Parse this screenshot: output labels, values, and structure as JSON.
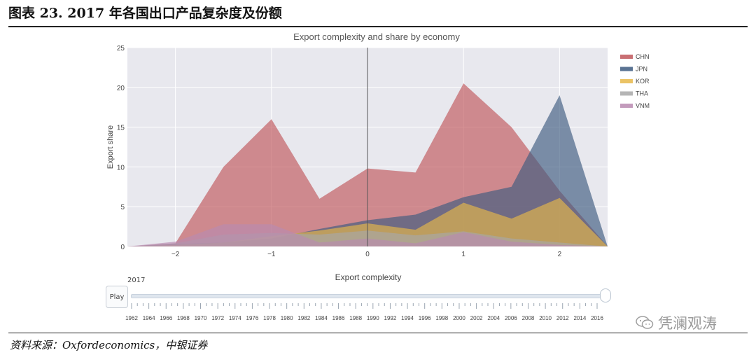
{
  "page": {
    "figure_title": "图表 23. 2017 年各国出口产品复杂度及份额",
    "source_note": "资料来源：Oxfordeconomics，中银证券",
    "watermark": "凭澜观涛"
  },
  "slider": {
    "play_label": "Play",
    "current_label": "2017",
    "value": 2017,
    "years": [
      "1962",
      "1964",
      "1966",
      "1968",
      "1970",
      "1972",
      "1974",
      "1976",
      "1978",
      "1980",
      "1982",
      "1984",
      "1986",
      "1988",
      "1990",
      "1992",
      "1994",
      "1996",
      "1998",
      "2000",
      "2002",
      "2004",
      "2006",
      "2008",
      "2010",
      "2012",
      "2014",
      "2016"
    ]
  },
  "colors": {
    "CHN": "#c0565b",
    "JPN": "#3d5a80",
    "KOR": "#e7b84a",
    "THA": "#a8a8a8",
    "VNM": "#b98ab0",
    "plot_bg": "#e8e8ee",
    "grid": "#ffffff"
  },
  "chart_data": {
    "type": "area",
    "title": "Export complexity and share by economy",
    "xlabel": "Export complexity",
    "ylabel": "Export share",
    "xlim": [
      -2.5,
      2.5
    ],
    "ylim": [
      0,
      25
    ],
    "xticks": [
      -2,
      -1,
      0,
      1,
      2
    ],
    "xtick_labels": [
      "−2",
      "−1",
      "0",
      "1",
      "2"
    ],
    "yticks": [
      0,
      5,
      10,
      15,
      20,
      25
    ],
    "vertical_line_x": 0,
    "grid": true,
    "legend_position": "right",
    "x": [
      -2.5,
      -2.0,
      -1.5,
      -1.0,
      -0.5,
      0.0,
      0.5,
      1.0,
      1.5,
      2.0,
      2.5
    ],
    "series": [
      {
        "name": "CHN",
        "values": [
          0,
          0.4,
          10.0,
          16.0,
          6.0,
          9.8,
          9.3,
          20.5,
          15.0,
          7.0,
          0
        ]
      },
      {
        "name": "JPN",
        "values": [
          0,
          0.3,
          0.5,
          1.0,
          2.2,
          3.3,
          4.0,
          6.2,
          7.5,
          19.0,
          0
        ]
      },
      {
        "name": "KOR",
        "values": [
          0,
          0.2,
          0.5,
          1.3,
          2.0,
          2.9,
          2.1,
          5.5,
          3.5,
          6.1,
          0
        ]
      },
      {
        "name": "THA",
        "values": [
          0,
          0.4,
          1.5,
          1.7,
          1.5,
          2.0,
          1.4,
          1.9,
          1.0,
          0.5,
          0
        ]
      },
      {
        "name": "VNM",
        "values": [
          0,
          0.6,
          2.8,
          2.8,
          0.5,
          1.0,
          0.4,
          1.8,
          0.6,
          0.2,
          0
        ]
      }
    ]
  }
}
